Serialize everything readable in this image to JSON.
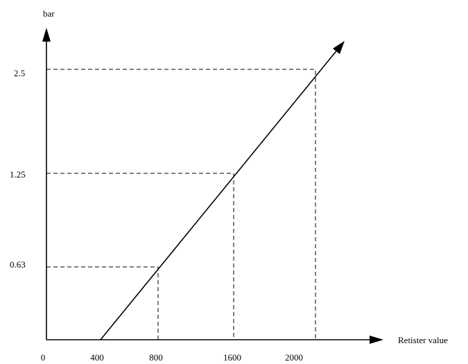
{
  "y_axis": {
    "label": "bar",
    "ticks": [
      "2.5",
      "1.25",
      "0.63"
    ]
  },
  "x_axis": {
    "label": "Retister value",
    "ticks": [
      "0",
      "400",
      "800",
      "1600",
      "2000"
    ]
  }
}
